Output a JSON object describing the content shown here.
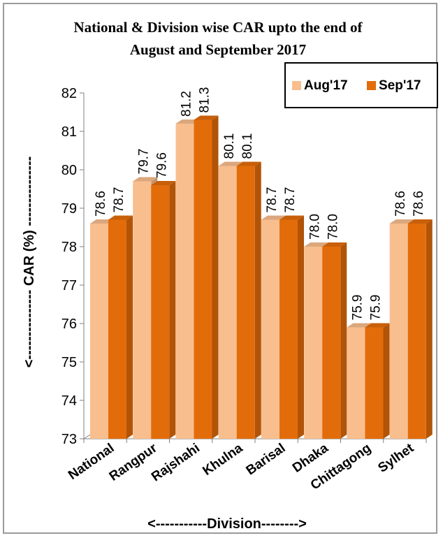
{
  "chart_data": {
    "type": "bar",
    "title_line1": "National & Division wise CAR upto the end of",
    "title_line2": "August and September 2017",
    "xlabel": "<-----------Division-------->",
    "ylabel": "<--------------- CAR (%) ---------------",
    "ylim": [
      73,
      82
    ],
    "yticks": [
      "73",
      "74",
      "75",
      "76",
      "77",
      "78",
      "79",
      "80",
      "81",
      "82"
    ],
    "categories": [
      "National",
      "Rangpur",
      "Rajshahi",
      "Khulna",
      "Barisal",
      "Dhaka",
      "Chittagong",
      "Sylhet"
    ],
    "series": [
      {
        "name": "Aug'17",
        "values": [
          78.6,
          79.7,
          81.2,
          80.1,
          78.7,
          78.0,
          75.9,
          78.6
        ],
        "labels": [
          "78.6",
          "79.7",
          "81.2",
          "80.1",
          "78.7",
          "78.0",
          "75.9",
          "78.6"
        ],
        "color": "#F9BE8E"
      },
      {
        "name": "Sep'17",
        "values": [
          78.7,
          79.6,
          81.3,
          80.1,
          78.7,
          78.0,
          75.9,
          78.6
        ],
        "labels": [
          "78.7",
          "79.6",
          "81.3",
          "80.1",
          "78.7",
          "78.0",
          "75.9",
          "78.6"
        ],
        "color": "#E36C0A"
      }
    ],
    "legend_position": "top-right",
    "grid": false
  }
}
